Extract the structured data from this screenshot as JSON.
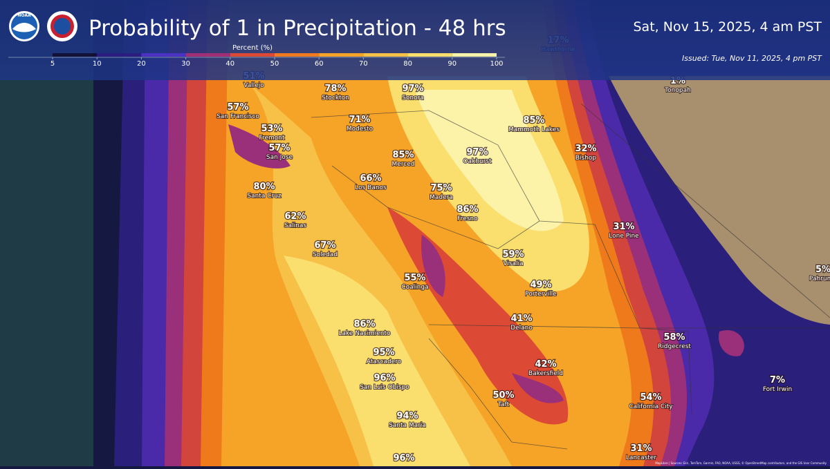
{
  "header": {
    "logo_text": "NOAA",
    "title": "Probability of 1 in Precipitation - 48 hrs",
    "valid_time": "Sat, Nov 15, 2025, 4 am PST",
    "issued": "Issued: Tue, Nov 11, 2025, 4 pm PST"
  },
  "legend": {
    "title": "Percent (%)",
    "ticks": [
      5,
      10,
      20,
      30,
      40,
      50,
      60,
      70,
      80,
      90,
      100
    ],
    "colors": [
      "#121238",
      "#2b1c80",
      "#4b32c0",
      "#a02f78",
      "#dc4a35",
      "#f07a1f",
      "#f6a428",
      "#f7c046",
      "#fadf6e",
      "#fcf2a8"
    ]
  },
  "locations": [
    {
      "value": "17%",
      "name": "Hawthorne"
    },
    {
      "value": "51%",
      "name": "Vallejo"
    },
    {
      "value": "78%",
      "name": "Stockton"
    },
    {
      "value": "97%",
      "name": "Sonora"
    },
    {
      "value": "1%",
      "name": "Tonopah"
    },
    {
      "value": "57%",
      "name": "San Francisco"
    },
    {
      "value": "71%",
      "name": "Modesto"
    },
    {
      "value": "85%",
      "name": "Mammoth Lakes"
    },
    {
      "value": "53%",
      "name": "Fremont"
    },
    {
      "value": "57%",
      "name": "San Jose"
    },
    {
      "value": "32%",
      "name": "Bishop"
    },
    {
      "value": "85%",
      "name": "Merced"
    },
    {
      "value": "97%",
      "name": "Oakhurst"
    },
    {
      "value": "66%",
      "name": "Los Banos"
    },
    {
      "value": "80%",
      "name": "Santa Cruz"
    },
    {
      "value": "75%",
      "name": "Madera"
    },
    {
      "value": "86%",
      "name": "Fresno"
    },
    {
      "value": "62%",
      "name": "Salinas"
    },
    {
      "value": "31%",
      "name": "Lone Pine"
    },
    {
      "value": "67%",
      "name": "Soledad"
    },
    {
      "value": "59%",
      "name": "Visalia"
    },
    {
      "value": "55%",
      "name": "Coalinga"
    },
    {
      "value": "5%",
      "name": "Pahrump"
    },
    {
      "value": "49%",
      "name": "Porterville"
    },
    {
      "value": "41%",
      "name": "Delano"
    },
    {
      "value": "86%",
      "name": "Lake Nacimiento"
    },
    {
      "value": "58%",
      "name": "Ridgecrest"
    },
    {
      "value": "95%",
      "name": "Atascadero"
    },
    {
      "value": "42%",
      "name": "Bakersfield"
    },
    {
      "value": "96%",
      "name": "San Luis Obispo"
    },
    {
      "value": "7%",
      "name": "Fort Irwin"
    },
    {
      "value": "50%",
      "name": "Taft"
    },
    {
      "value": "54%",
      "name": "California City"
    },
    {
      "value": "94%",
      "name": "Santa Maria"
    },
    {
      "value": "31%",
      "name": "Lancaster"
    },
    {
      "value": "96%"
    }
  ],
  "attribution": "MapLibre | Sources: Esri, TomTom, Garmin, FAO, NOAA, USGS, © OpenStreetMap contributors, and the GIS User Community"
}
